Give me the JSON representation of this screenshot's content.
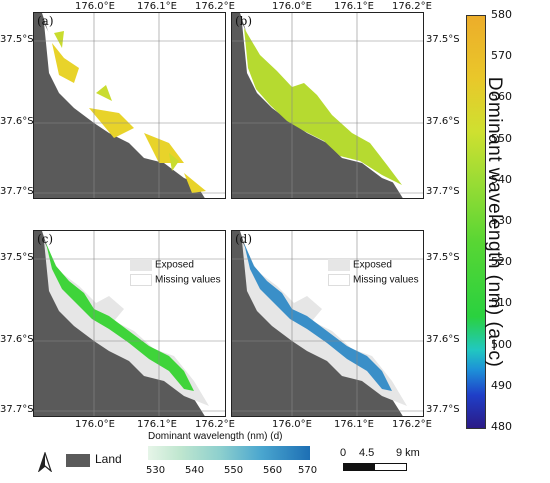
{
  "panels": [
    {
      "label": "(a)",
      "style": "yellow"
    },
    {
      "label": "(b)",
      "style": "lime"
    },
    {
      "label": "(c)",
      "style": "green",
      "legend": true
    },
    {
      "label": "(d)",
      "style": "blue",
      "legend": true
    }
  ],
  "lon_ticks": [
    "176.0°E",
    "176.1°E",
    "176.2°E"
  ],
  "lat_ticks": [
    "37.5°S",
    "37.6°S",
    "37.7°S"
  ],
  "inset_legend": {
    "exposed": "Exposed",
    "missing": "Missing values"
  },
  "colorbar_ac": {
    "title": "Dominant wavelength (nm) (a–c)",
    "ticks": [
      "580",
      "570",
      "560",
      "550",
      "540",
      "530",
      "520",
      "510",
      "500",
      "490",
      "480"
    ]
  },
  "colorbar_d": {
    "title": "Dominant wavelength (nm) (d)",
    "ticks": [
      "530",
      "540",
      "550",
      "560",
      "570"
    ]
  },
  "land_legend": "Land",
  "scale_bar": {
    "labels": [
      "0",
      "4.5",
      "9 km"
    ]
  },
  "colors": {
    "land": "#5a5a5a",
    "exposed": "#e6e6e6",
    "missing": "#ffffff"
  }
}
